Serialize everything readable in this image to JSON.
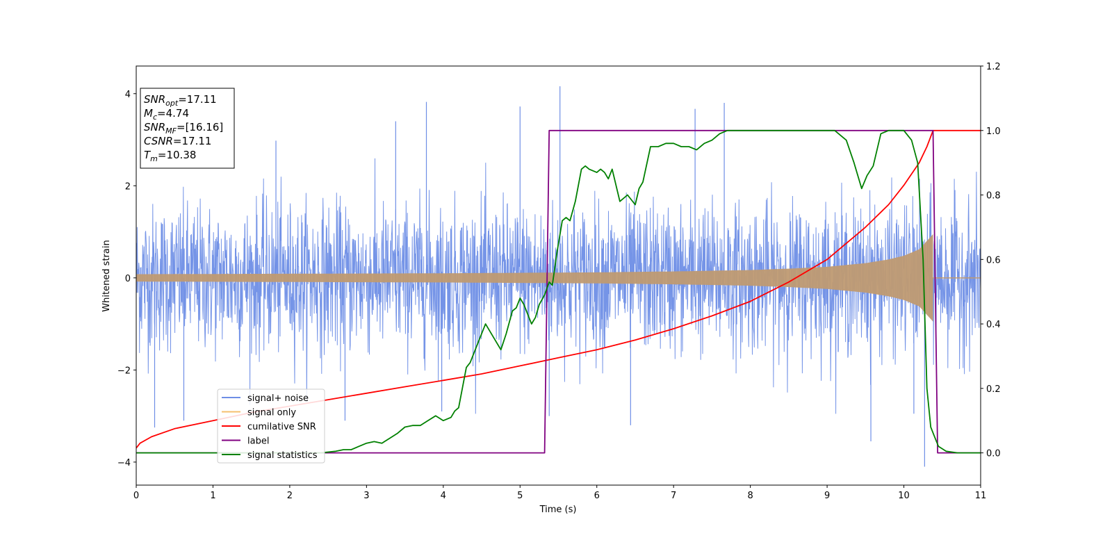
{
  "chart_data": {
    "type": "line",
    "title": "",
    "xlabel": "Time (s)",
    "ylabel": "Whitened strain",
    "xlim": [
      0,
      11
    ],
    "ylim_left": [
      -4.5,
      4.6
    ],
    "ylim_right": [
      -0.1,
      1.2
    ],
    "x_ticks": [
      "0",
      "1",
      "2",
      "3",
      "4",
      "5",
      "6",
      "7",
      "8",
      "9",
      "10",
      "11"
    ],
    "y_left_ticks": [
      "−4",
      "−2",
      "0",
      "2",
      "4"
    ],
    "y_right_ticks": [
      "0.0",
      "0.2",
      "0.4",
      "0.6",
      "0.8",
      "1.0",
      "1.2"
    ],
    "grid": false,
    "legend_placement": "lower-left",
    "colors": {
      "signal_noise": "#6e8ee6",
      "signal_only": "#f5c06e",
      "cumulative_snr": "#ff0000",
      "label": "#800080",
      "signal_statistics": "#008000"
    },
    "series": [
      {
        "name": "signal+ noise",
        "axis": "left",
        "description_envelope": {
          "x": [
            0,
            11
          ],
          "typical_half_width": 1.1,
          "peaks_max": 4.1,
          "peaks_min": -4.1
        },
        "spikes": [
          [
            0.24,
            -3.25
          ],
          [
            0.62,
            -3.1
          ],
          [
            1.82,
            2.98
          ],
          [
            2.72,
            -3.1
          ],
          [
            3.38,
            3.4
          ],
          [
            3.78,
            3.82
          ],
          [
            3.98,
            -2.9
          ],
          [
            5.0,
            3.72
          ],
          [
            5.52,
            4.16
          ],
          [
            5.38,
            -3.0
          ],
          [
            6.44,
            -3.2
          ],
          [
            7.28,
            3.67
          ],
          [
            7.66,
            3.8
          ],
          [
            9.57,
            -3.55
          ],
          [
            10.27,
            -4.1
          ],
          [
            10.13,
            -2.95
          ]
        ]
      },
      {
        "name": "signal only",
        "axis": "left",
        "envelope": {
          "x": [
            0,
            1,
            2,
            3,
            4,
            5,
            6,
            7,
            8,
            8.5,
            9,
            9.5,
            9.8,
            10.0,
            10.2,
            10.38
          ],
          "amp": [
            0.08,
            0.085,
            0.09,
            0.095,
            0.1,
            0.11,
            0.12,
            0.14,
            0.17,
            0.2,
            0.24,
            0.32,
            0.4,
            0.48,
            0.62,
            0.95
          ]
        },
        "end_time": 10.38
      },
      {
        "name": "cumilative SNR",
        "axis": "right",
        "x": [
          0,
          0.05,
          0.2,
          0.5,
          1,
          1.5,
          2,
          2.5,
          3,
          3.5,
          4,
          4.5,
          5,
          5.5,
          6,
          6.5,
          7,
          7.5,
          8,
          8.5,
          9,
          9.5,
          9.8,
          10.0,
          10.2,
          10.3,
          10.38,
          11
        ],
        "y": [
          0.015,
          0.03,
          0.05,
          0.075,
          0.1,
          0.125,
          0.145,
          0.165,
          0.185,
          0.205,
          0.225,
          0.245,
          0.27,
          0.295,
          0.32,
          0.35,
          0.385,
          0.425,
          0.47,
          0.53,
          0.6,
          0.7,
          0.77,
          0.83,
          0.9,
          0.95,
          1.0,
          1.0
        ]
      },
      {
        "name": "label",
        "axis": "right",
        "x": [
          0,
          5.32,
          5.38,
          10.38,
          10.44,
          11
        ],
        "y": [
          0,
          0,
          1,
          1,
          0,
          0
        ]
      },
      {
        "name": "signal statistics",
        "axis": "right",
        "x": [
          0,
          0.5,
          1,
          1.5,
          2,
          2.4,
          2.6,
          2.7,
          2.8,
          2.9,
          3.0,
          3.1,
          3.2,
          3.3,
          3.4,
          3.5,
          3.6,
          3.7,
          3.8,
          3.9,
          4.0,
          4.1,
          4.15,
          4.2,
          4.3,
          4.35,
          4.45,
          4.55,
          4.65,
          4.75,
          4.82,
          4.9,
          4.95,
          5.0,
          5.05,
          5.1,
          5.15,
          5.2,
          5.25,
          5.32,
          5.38,
          5.42,
          5.48,
          5.55,
          5.6,
          5.65,
          5.72,
          5.8,
          5.85,
          5.9,
          6.0,
          6.05,
          6.1,
          6.15,
          6.2,
          6.3,
          6.4,
          6.5,
          6.55,
          6.6,
          6.7,
          6.8,
          6.9,
          7.0,
          7.1,
          7.2,
          7.3,
          7.4,
          7.5,
          7.6,
          7.7,
          8.0,
          8.3,
          8.6,
          8.9,
          9.1,
          9.25,
          9.35,
          9.45,
          9.52,
          9.6,
          9.7,
          9.8,
          9.9,
          10.0,
          10.1,
          10.18,
          10.25,
          10.3,
          10.35,
          10.4,
          10.45,
          10.55,
          10.7,
          11
        ],
        "y": [
          0,
          0,
          0,
          0,
          0,
          0,
          0.005,
          0.01,
          0.01,
          0.02,
          0.03,
          0.035,
          0.03,
          0.045,
          0.06,
          0.08,
          0.085,
          0.085,
          0.1,
          0.115,
          0.1,
          0.11,
          0.13,
          0.14,
          0.265,
          0.28,
          0.34,
          0.4,
          0.36,
          0.32,
          0.37,
          0.44,
          0.45,
          0.48,
          0.46,
          0.43,
          0.4,
          0.42,
          0.46,
          0.49,
          0.53,
          0.52,
          0.62,
          0.72,
          0.73,
          0.72,
          0.78,
          0.88,
          0.89,
          0.88,
          0.87,
          0.88,
          0.87,
          0.85,
          0.88,
          0.78,
          0.8,
          0.77,
          0.82,
          0.84,
          0.95,
          0.95,
          0.96,
          0.96,
          0.95,
          0.95,
          0.94,
          0.96,
          0.97,
          0.99,
          1.0,
          1.0,
          1.0,
          1.0,
          1.0,
          1.0,
          0.97,
          0.9,
          0.82,
          0.86,
          0.89,
          0.99,
          1.0,
          1.0,
          1.0,
          0.97,
          0.9,
          0.6,
          0.2,
          0.08,
          0.05,
          0.02,
          0.005,
          0.0,
          0.0
        ]
      }
    ],
    "annotation": {
      "lines": [
        {
          "base": "SNR",
          "sub": "opt",
          "rest": "=17.11"
        },
        {
          "base": "M",
          "sub": "c",
          "rest": "=4.74"
        },
        {
          "base": "SNR",
          "sub": "MF",
          "rest": "=[16.16]"
        },
        {
          "base": "CSNR",
          "sub": "",
          "rest": "=17.11"
        },
        {
          "base": "T",
          "sub": "m",
          "rest": "=10.38"
        }
      ]
    }
  }
}
